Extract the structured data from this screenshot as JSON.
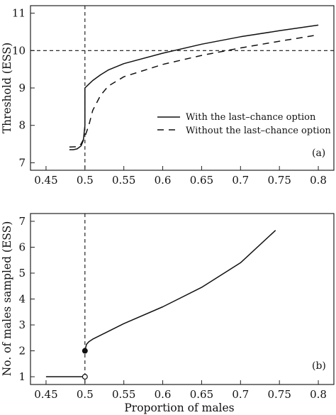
{
  "chart_data": [
    {
      "type": "line",
      "panel_label": "(a)",
      "ylabel": "Threshold (ESS)",
      "xlabel": "",
      "xlim": [
        0.43,
        0.82
      ],
      "ylim": [
        6.8,
        11.2
      ],
      "xticks": [
        "0.45",
        "0.5",
        "0.55",
        "0.6",
        "0.65",
        "0.7",
        "0.75",
        "0.8"
      ],
      "yticks": [
        "7",
        "8",
        "9",
        "10",
        "11"
      ],
      "reference_lines": {
        "vertical_x": 0.5,
        "horizontal_y": 10
      },
      "legend": {
        "placement": "center-right"
      },
      "series": [
        {
          "name": "With the last–chance option",
          "style": "solid",
          "x": [
            0.48,
            0.485,
            0.49,
            0.495,
            0.498,
            0.5,
            0.5,
            0.505,
            0.51,
            0.52,
            0.53,
            0.55,
            0.6,
            0.65,
            0.7,
            0.75,
            0.8
          ],
          "y": [
            7.35,
            7.35,
            7.37,
            7.45,
            7.6,
            8.0,
            9.0,
            9.1,
            9.2,
            9.35,
            9.48,
            9.65,
            9.93,
            10.17,
            10.37,
            10.53,
            10.68
          ]
        },
        {
          "name": "Without the last–chance option",
          "style": "dashed",
          "x": [
            0.48,
            0.49,
            0.495,
            0.5,
            0.505,
            0.51,
            0.52,
            0.53,
            0.55,
            0.6,
            0.65,
            0.7,
            0.75,
            0.8
          ],
          "y": [
            7.42,
            7.43,
            7.5,
            7.7,
            8.0,
            8.4,
            8.8,
            9.05,
            9.3,
            9.63,
            9.87,
            10.07,
            10.25,
            10.42
          ]
        }
      ]
    },
    {
      "type": "line",
      "panel_label": "(b)",
      "ylabel": "No. of males sampled (ESS)",
      "xlabel": "Proportion of males",
      "xlim": [
        0.43,
        0.82
      ],
      "ylim": [
        0.7,
        7.3
      ],
      "xticks": [
        "0.45",
        "0.5",
        "0.55",
        "0.6",
        "0.65",
        "0.7",
        "0.75",
        "0.8"
      ],
      "yticks": [
        "1",
        "2",
        "3",
        "4",
        "5",
        "6",
        "7"
      ],
      "reference_lines": {
        "vertical_x": 0.5
      },
      "markers": [
        {
          "x": 0.5,
          "y": 1,
          "fill": "open"
        },
        {
          "x": 0.5,
          "y": 2,
          "fill": "filled"
        }
      ],
      "series": [
        {
          "style": "solid",
          "x": [
            0.45,
            0.5
          ],
          "y": [
            1,
            1
          ]
        },
        {
          "style": "solid",
          "x": [
            0.5,
            0.502,
            0.505,
            0.51,
            0.55,
            0.6,
            0.65,
            0.7,
            0.745
          ],
          "y": [
            2.0,
            2.25,
            2.35,
            2.45,
            3.05,
            3.7,
            4.45,
            5.4,
            6.65
          ]
        }
      ]
    }
  ]
}
